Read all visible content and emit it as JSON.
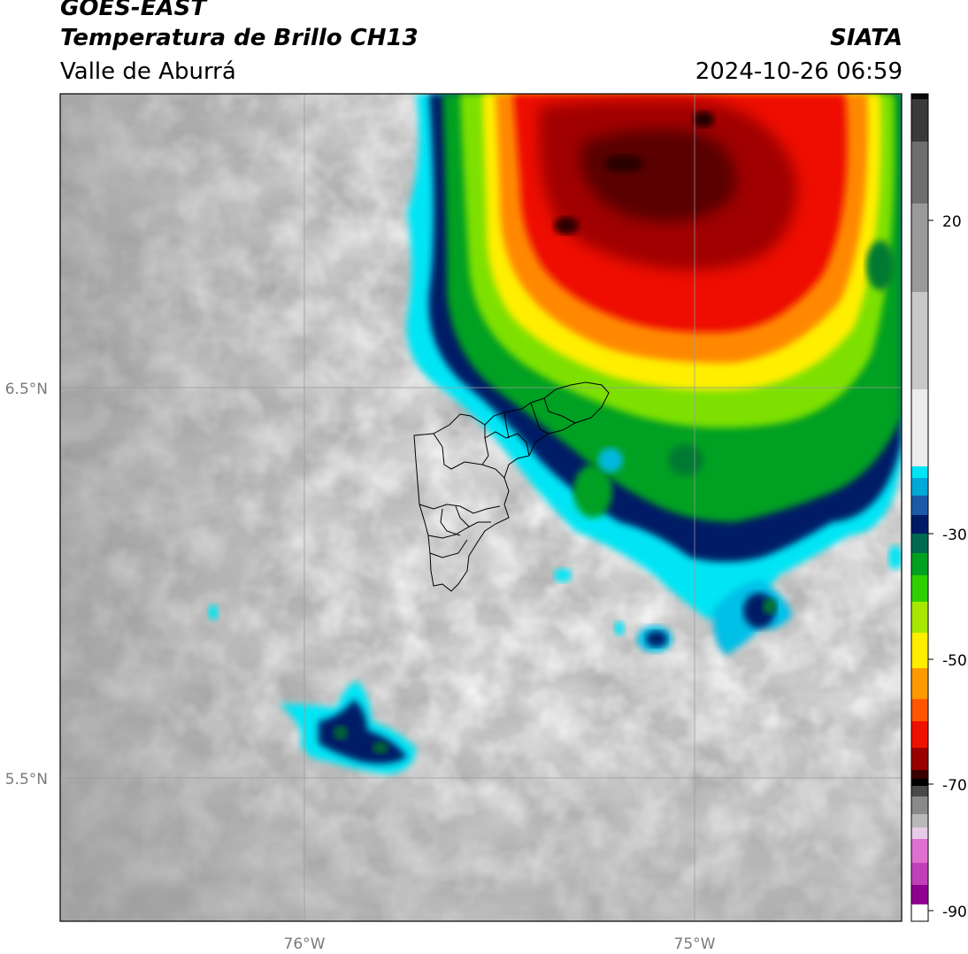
{
  "header": {
    "satellite": "GOES-EAST",
    "product": "Temperatura de Brillo CH13",
    "region": "Valle de Aburrá",
    "organization": "SIATA",
    "datetime": "2024-10-26 06:59"
  },
  "map": {
    "lat_labels": [
      "6.5°N",
      "5.5°N"
    ],
    "lon_labels": [
      "76°W",
      "75°W"
    ],
    "gridlines": true
  },
  "colorbar": {
    "tick_labels": [
      "20",
      "-30",
      "-50",
      "-70",
      "-90"
    ],
    "colors": {
      "warm_gray_light": "#e6e6e6",
      "warm_gray_dark": "#6e6e6e",
      "cyan": "#00e5f5",
      "blue": "#0a3da8",
      "navy": "#001a66",
      "green": "#00cc00",
      "yellow": "#ffee00",
      "orange": "#ff8800",
      "red": "#ee1100",
      "dark_red": "#7a0000",
      "black": "#000000",
      "magenta": "#cc44cc",
      "purple": "#880088"
    }
  }
}
